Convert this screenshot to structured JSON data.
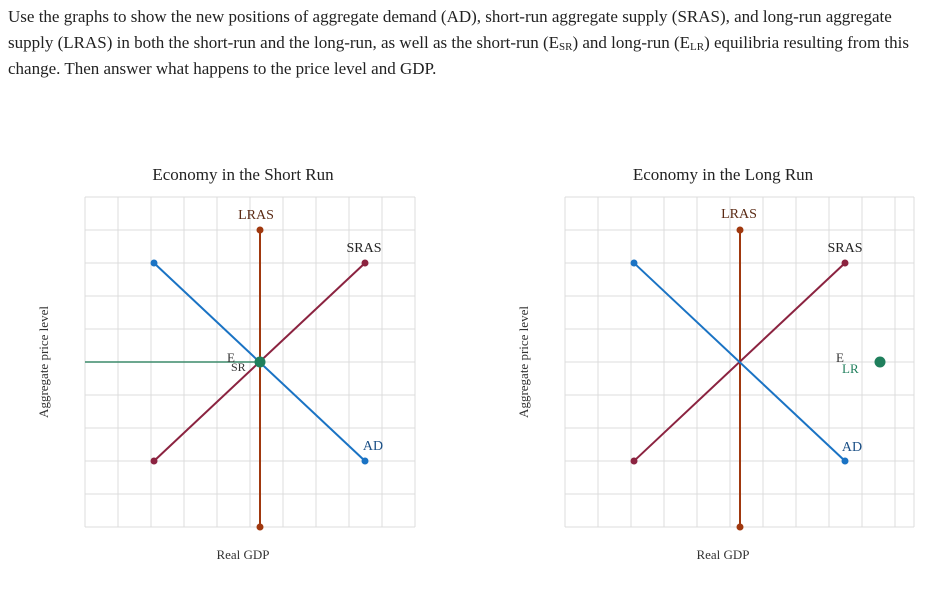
{
  "prompt": {
    "part1": "Use the graphs to show the new positions of aggregate demand (AD), short-run aggregate supply (SRAS), and long-run aggregate supply (LRAS) in both the short-run and the long-run, as well as the short-run (E",
    "sub_sr": "SR",
    "part2": ") and long-run (E",
    "sub_lr": "LR",
    "part3": ") equilibria resulting from this change. Then answer what happens to the price level and GDP."
  },
  "graphs": [
    {
      "title": "Economy in the Short Run",
      "xlabel": "Real GDP",
      "ylabel": "Aggregate price level",
      "lras_label": "LRAS",
      "sras_label": "SRAS",
      "ad_label": "AD",
      "eq_label_main": "E",
      "eq_label_sub": "SR",
      "eq_placed": true
    },
    {
      "title": "Economy in the Long Run",
      "xlabel": "Real GDP",
      "ylabel": "Aggregate price level",
      "lras_label": "LRAS",
      "sras_label": "SRAS",
      "ad_label": "AD",
      "eq_label_main": "E",
      "eq_label_sub": "LR",
      "eq_placed": false
    }
  ],
  "colors": {
    "lras": "#a0380e",
    "sras": "#8b2340",
    "ad": "#1a73c4",
    "eq_marker": "#1f7f5c",
    "guide": "#3c8a6a",
    "grid": "#dcdcdc"
  }
}
